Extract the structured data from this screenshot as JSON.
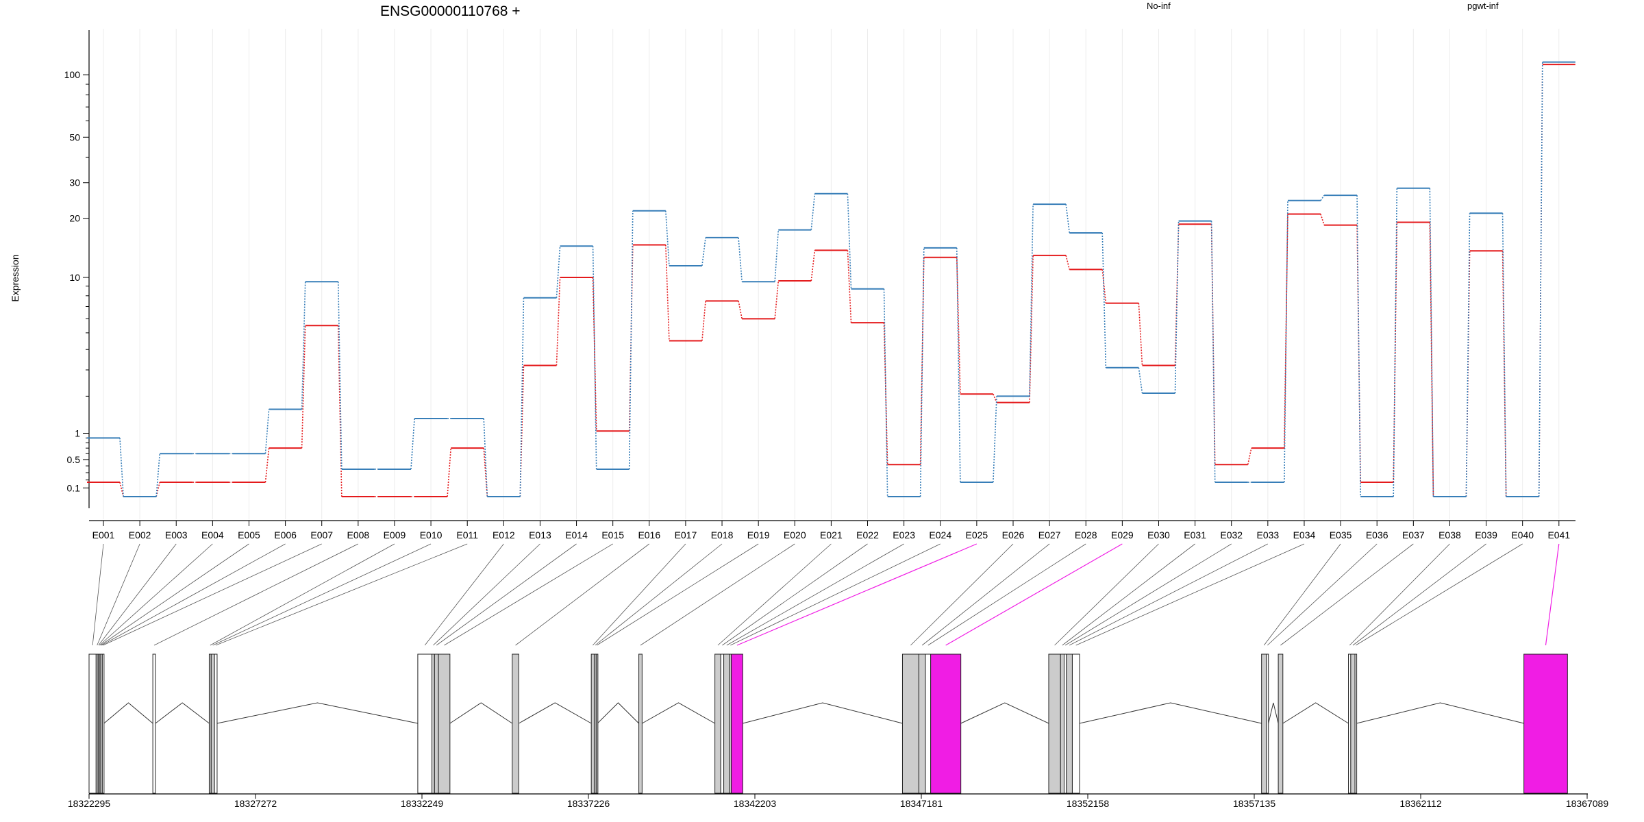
{
  "chart_data": {
    "type": "line",
    "title": "ENSG00000110768 +",
    "xlabel": "",
    "ylabel": "Expression",
    "y_scale": "log(x+0.1)-like",
    "y_ticks": [
      {
        "value": 0.1,
        "label": "0.1"
      },
      {
        "value": 0.5,
        "label": "0.5"
      },
      {
        "value": 1,
        "label": "1"
      },
      {
        "value": 10,
        "label": "10"
      },
      {
        "value": 20,
        "label": "20"
      },
      {
        "value": 30,
        "label": "30"
      },
      {
        "value": 50,
        "label": "50"
      },
      {
        "value": 100,
        "label": "100"
      }
    ],
    "categories": [
      "E001",
      "E002",
      "E003",
      "E004",
      "E005",
      "E006",
      "E007",
      "E008",
      "E009",
      "E010",
      "E011",
      "E012",
      "E013",
      "E014",
      "E015",
      "E016",
      "E017",
      "E018",
      "E019",
      "E020",
      "E021",
      "E022",
      "E023",
      "E024",
      "E025",
      "E026",
      "E027",
      "E028",
      "E029",
      "E030",
      "E031",
      "E032",
      "E033",
      "E034",
      "E035",
      "E036",
      "E037",
      "E038",
      "E039",
      "E040",
      "E041"
    ],
    "series": [
      {
        "name": "No-inf",
        "color": "#e41a1c",
        "values": [
          0.17,
          0,
          0.17,
          0.17,
          0.17,
          0.7,
          5.5,
          0,
          0,
          0,
          0.7,
          0,
          3.2,
          10,
          1.05,
          14.7,
          4.5,
          7.5,
          6,
          9.6,
          13.8,
          5.7,
          0.42,
          12.7,
          2.07,
          1.8,
          13,
          11,
          7.3,
          3.2,
          18.7,
          0.42,
          0.7,
          21,
          18.5,
          0.17,
          19.1,
          0,
          13.7,
          0,
          112
        ]
      },
      {
        "name": "pgwt-inf",
        "color": "#377eb8",
        "values": [
          0.9,
          0,
          0.6,
          0.6,
          0.6,
          1.6,
          9.5,
          0.35,
          0.35,
          1.35,
          1.35,
          0,
          7.8,
          14.5,
          0.35,
          21.8,
          11.5,
          16,
          9.5,
          17.5,
          26.5,
          8.7,
          0,
          14.2,
          0.17,
          2,
          23.5,
          16.9,
          3.1,
          2.1,
          19.4,
          0.17,
          0.17,
          24.5,
          26,
          0,
          28.2,
          0,
          21.2,
          0,
          115
        ]
      }
    ],
    "genomic_axis": {
      "range": [
        18322295,
        18368000
      ],
      "tick_labels": [
        "18322295",
        "18327272",
        "18332249",
        "18337226",
        "18342203",
        "18347181",
        "18352158",
        "18357135",
        "18362112",
        "18367089"
      ]
    },
    "gene_model": {
      "highlight_color": "#f01de4",
      "highlighted_exons": [
        "E025",
        "E029",
        "E041"
      ],
      "exons": [
        {
          "id": "E001",
          "start": 18322295,
          "end": 18322510,
          "expressed": false
        },
        {
          "id": "E002",
          "start": 18322510,
          "end": 18322570,
          "expressed": true
        },
        {
          "id": "E003",
          "start": 18322570,
          "end": 18322600,
          "expressed": false
        },
        {
          "id": "E004",
          "start": 18322600,
          "end": 18322630,
          "expressed": false
        },
        {
          "id": "E005",
          "start": 18322630,
          "end": 18322660,
          "expressed": false
        },
        {
          "id": "E006",
          "start": 18322660,
          "end": 18322700,
          "expressed": false
        },
        {
          "id": "E007",
          "start": 18322700,
          "end": 18322750,
          "expressed": false
        },
        {
          "id": "E008",
          "start": 18324240,
          "end": 18324320,
          "expressed": false
        },
        {
          "id": "E009",
          "start": 18325960,
          "end": 18326020,
          "expressed": true
        },
        {
          "id": "E010",
          "start": 18326020,
          "end": 18326120,
          "expressed": true
        },
        {
          "id": "E011",
          "start": 18326120,
          "end": 18326200,
          "expressed": false
        },
        {
          "id": "E012",
          "start": 18332320,
          "end": 18332750,
          "expressed": false
        },
        {
          "id": "E013",
          "start": 18332750,
          "end": 18332830,
          "expressed": true
        },
        {
          "id": "E014",
          "start": 18332830,
          "end": 18332950,
          "expressed": true
        },
        {
          "id": "E015",
          "start": 18332950,
          "end": 18333300,
          "expressed": true
        },
        {
          "id": "E016",
          "start": 18335200,
          "end": 18335400,
          "expressed": true
        },
        {
          "id": "E017",
          "start": 18337610,
          "end": 18337700,
          "expressed": true
        },
        {
          "id": "E018",
          "start": 18337700,
          "end": 18337760,
          "expressed": true
        },
        {
          "id": "E019",
          "start": 18337760,
          "end": 18337800,
          "expressed": true
        },
        {
          "id": "E020",
          "start": 18339060,
          "end": 18339160,
          "expressed": true
        },
        {
          "id": "E021",
          "start": 18341380,
          "end": 18341560,
          "expressed": true
        },
        {
          "id": "E022",
          "start": 18341560,
          "end": 18341650,
          "expressed": false
        },
        {
          "id": "E023",
          "start": 18341650,
          "end": 18341830,
          "expressed": true
        },
        {
          "id": "E024",
          "start": 18341830,
          "end": 18341880,
          "expressed": true
        },
        {
          "id": "E025",
          "start": 18341880,
          "end": 18342230,
          "expressed": true,
          "highlight": true
        },
        {
          "id": "E026",
          "start": 18347100,
          "end": 18347600,
          "expressed": true
        },
        {
          "id": "E027",
          "start": 18347600,
          "end": 18347800,
          "expressed": true
        },
        {
          "id": "E028",
          "start": 18347800,
          "end": 18347960,
          "expressed": false
        },
        {
          "id": "E029",
          "start": 18347960,
          "end": 18348880,
          "expressed": true,
          "highlight": true
        },
        {
          "id": "E030",
          "start": 18351560,
          "end": 18351920,
          "expressed": true
        },
        {
          "id": "E031",
          "start": 18351920,
          "end": 18352030,
          "expressed": true
        },
        {
          "id": "E032",
          "start": 18352030,
          "end": 18352100,
          "expressed": false
        },
        {
          "id": "E033",
          "start": 18352100,
          "end": 18352280,
          "expressed": true
        },
        {
          "id": "E034",
          "start": 18352280,
          "end": 18352500,
          "expressed": false
        },
        {
          "id": "E035",
          "start": 18358050,
          "end": 18358200,
          "expressed": true
        },
        {
          "id": "E036",
          "start": 18358200,
          "end": 18358260,
          "expressed": false
        },
        {
          "id": "E037",
          "start": 18358560,
          "end": 18358700,
          "expressed": true
        },
        {
          "id": "E038",
          "start": 18360700,
          "end": 18360770,
          "expressed": false
        },
        {
          "id": "E039",
          "start": 18360770,
          "end": 18360900,
          "expressed": true
        },
        {
          "id": "E040",
          "start": 18360900,
          "end": 18360950,
          "expressed": false
        },
        {
          "id": "E041",
          "start": 18366050,
          "end": 18367380,
          "expressed": true,
          "highlight": true
        }
      ]
    }
  }
}
